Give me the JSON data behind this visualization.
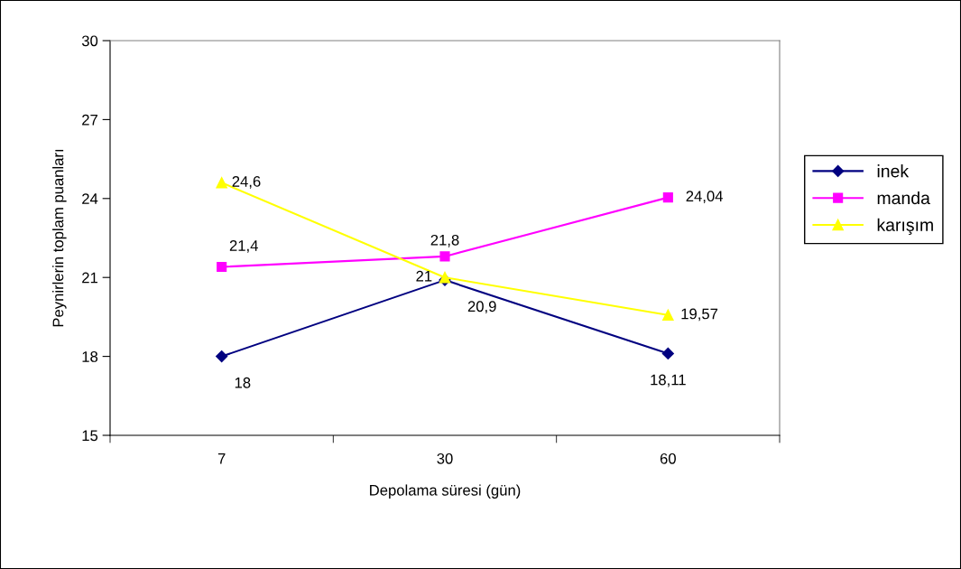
{
  "chart_data": {
    "type": "line",
    "xlabel": "Depolama süresi (gün)",
    "ylabel": "Peynirlerin toplam puanları",
    "categories": [
      "7",
      "30",
      "60"
    ],
    "series": [
      {
        "name": "inek",
        "color": "#000080",
        "marker": "diamond",
        "values": [
          18,
          20.9,
          18.11
        ],
        "value_labels": [
          "18",
          "20,9",
          "18,11"
        ]
      },
      {
        "name": "manda",
        "color": "#ff00ff",
        "marker": "square",
        "values": [
          21.4,
          21.8,
          24.04
        ],
        "value_labels": [
          "21,4",
          "21,8",
          "24,04"
        ]
      },
      {
        "name": "karışım",
        "color": "#ffff00",
        "marker": "triangle",
        "values": [
          24.6,
          21,
          19.57
        ],
        "value_labels": [
          "24,6",
          "21",
          "19,57"
        ]
      }
    ],
    "ylim": [
      15,
      30
    ],
    "yticks": [
      15,
      18,
      21,
      24,
      27,
      30
    ],
    "grid": false,
    "legend": "right",
    "line_style": "solid"
  }
}
